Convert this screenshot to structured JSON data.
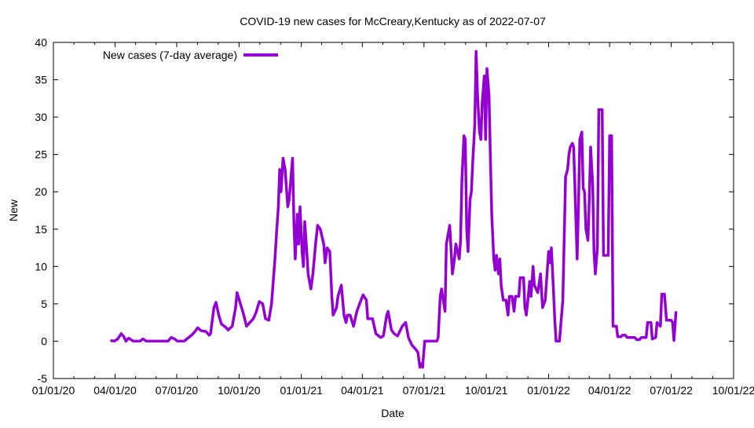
{
  "chart_data": {
    "type": "line",
    "title": "COVID-19 new cases for McCreary,Kentucky as of 2022-07-07",
    "xlabel": "Date",
    "ylabel": "New",
    "x_units": "days since 2020-01-01",
    "xlim": [
      0,
      1004
    ],
    "ylim": [
      -5,
      40
    ],
    "yticks": [
      -5,
      0,
      5,
      10,
      15,
      20,
      25,
      30,
      35,
      40
    ],
    "xticks": [
      {
        "day": 0,
        "label": "01/01/20"
      },
      {
        "day": 91,
        "label": "04/01/20"
      },
      {
        "day": 182,
        "label": "07/01/20"
      },
      {
        "day": 274,
        "label": "10/01/20"
      },
      {
        "day": 366,
        "label": "01/01/21"
      },
      {
        "day": 456,
        "label": "04/01/21"
      },
      {
        "day": 547,
        "label": "07/01/21"
      },
      {
        "day": 639,
        "label": "10/01/21"
      },
      {
        "day": 731,
        "label": "01/01/22"
      },
      {
        "day": 821,
        "label": "04/01/22"
      },
      {
        "day": 912,
        "label": "07/01/22"
      },
      {
        "day": 1004,
        "label": "10/01/22"
      }
    ],
    "grid": false,
    "legend_position": "top-left",
    "series": [
      {
        "name": "New cases (7-day average)",
        "color": "#9400D3",
        "x": [
          84,
          90,
          95,
          100,
          104,
          107,
          111,
          118,
          128,
          132,
          137,
          169,
          174,
          179,
          183,
          193,
          197,
          204,
          209,
          213,
          218,
          225,
          230,
          232,
          237,
          240,
          244,
          248,
          255,
          258,
          264,
          269,
          271,
          276,
          281,
          285,
          290,
          295,
          299,
          304,
          309,
          313,
          318,
          322,
          327,
          329,
          332,
          334,
          336,
          339,
          342,
          346,
          348,
          353,
          355,
          357,
          360,
          362,
          364,
          367,
          369,
          371,
          374,
          376,
          380,
          383,
          387,
          390,
          394,
          399,
          401,
          404,
          408,
          411,
          413,
          418,
          420,
          425,
          429,
          432,
          434,
          438,
          443,
          448,
          452,
          457,
          462,
          464,
          471,
          476,
          483,
          487,
          492,
          494,
          499,
          503,
          508,
          515,
          520,
          524,
          529,
          534,
          538,
          541,
          543,
          545,
          548,
          557,
          566,
          568,
          571,
          573,
          578,
          580,
          585,
          589,
          592,
          594,
          599,
          601,
          603,
          606,
          608,
          610,
          612,
          615,
          617,
          619,
          622,
          624,
          626,
          629,
          631,
          633,
          636,
          638,
          640,
          643,
          645,
          647,
          650,
          652,
          654,
          657,
          659,
          661,
          664,
          668,
          671,
          673,
          677,
          680,
          682,
          687,
          689,
          694,
          696,
          698,
          701,
          703,
          705,
          708,
          710,
          715,
          719,
          722,
          726,
          731,
          733,
          735,
          738,
          740,
          742,
          747,
          752,
          754,
          756,
          759,
          761,
          763,
          766,
          768,
          773,
          775,
          777,
          780,
          782,
          784,
          786,
          789,
          791,
          793,
          796,
          798,
          800,
          803,
          805,
          810,
          812,
          819,
          821,
          824,
          826,
          831,
          833,
          838,
          840,
          844,
          847,
          858,
          861,
          865,
          868,
          875,
          877,
          882,
          884,
          889,
          891,
          896,
          898,
          902,
          905,
          912,
          914,
          916,
          919
        ],
        "y": [
          0.1,
          0,
          0.3,
          1,
          0.6,
          0,
          0.4,
          0,
          0,
          0.3,
          0,
          0,
          0.5,
          0.3,
          0,
          0,
          0.3,
          0.8,
          1.3,
          1.8,
          1.4,
          1.3,
          0.8,
          1,
          4.5,
          5.2,
          3.5,
          2.3,
          1.8,
          1.5,
          2,
          4.5,
          6.5,
          5,
          3.5,
          2,
          2.5,
          3,
          3.8,
          5.3,
          5,
          3,
          2.8,
          5,
          11,
          14,
          18,
          23,
          20,
          24.5,
          23,
          18,
          19,
          24.5,
          16,
          11,
          17,
          13,
          18,
          12,
          10,
          16,
          12,
          9,
          7,
          9,
          13,
          15.5,
          15,
          13,
          10.5,
          12.5,
          12,
          6,
          3.5,
          4.5,
          6,
          7.5,
          3.5,
          2.5,
          3.5,
          3.5,
          2,
          4,
          5,
          6.2,
          5.5,
          3,
          3,
          1,
          0.5,
          0.7,
          3.5,
          4,
          1.5,
          1,
          0.7,
          2,
          2.5,
          0.5,
          -0.5,
          -1,
          -1.5,
          -3.5,
          -3,
          -3.5,
          0,
          0,
          0,
          0.5,
          6,
          7,
          4,
          13,
          15.5,
          9,
          11,
          13,
          11,
          13.5,
          21.5,
          27.5,
          27,
          15,
          12,
          19,
          20,
          24,
          29,
          38.8,
          33,
          28,
          27,
          32,
          35.5,
          27,
          36.5,
          33,
          25,
          17,
          11,
          9.5,
          11.5,
          9,
          11,
          7.5,
          5.5,
          5.5,
          3.5,
          6,
          6,
          4,
          6,
          6,
          8.5,
          8.5,
          4.5,
          3.5,
          6,
          8,
          6,
          10,
          7.5,
          6.5,
          9,
          4.5,
          5.5,
          12,
          10.5,
          12.5,
          7,
          3,
          0,
          0,
          5.5,
          14,
          22,
          23,
          25,
          26,
          26.5,
          26,
          11,
          18,
          27,
          28,
          20.5,
          20,
          15,
          13.5,
          19,
          26,
          21,
          12,
          9,
          12.5,
          31,
          31,
          11.5,
          11.5,
          27.5,
          27.5,
          2,
          2,
          0.6,
          0.6,
          0.8,
          0.8,
          0.5,
          0.5,
          0.2,
          0.2,
          0.5,
          0.5,
          2.5,
          2.5,
          0.3,
          0.5,
          2.5,
          2,
          6.3,
          6.3,
          2.8,
          2.8,
          2.5,
          0.1,
          4
        ]
      }
    ]
  }
}
